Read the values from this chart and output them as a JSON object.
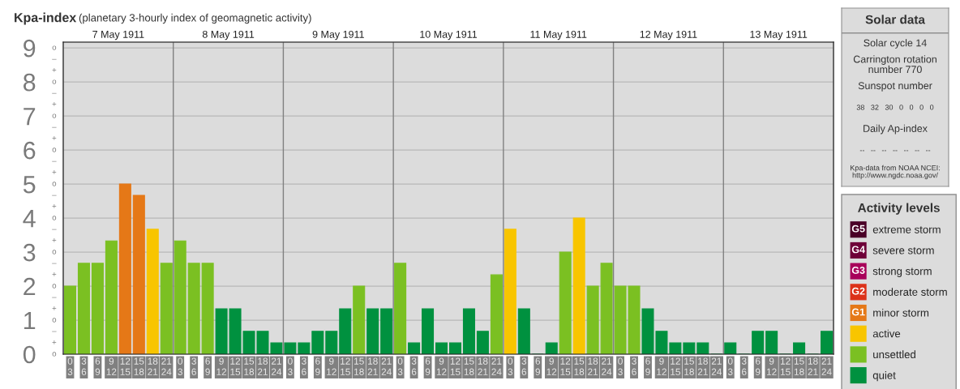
{
  "chart_data": [
    {
      "type": "bar",
      "title": "Kpa-index",
      "subtitle": "(planetary 3-hourly index of geomagnetic activity)",
      "legend_title": "Activity levels",
      "legend": "right",
      "grid": true,
      "categories": [
        "0\n3",
        "3\n6",
        "6\n9",
        "9\n12",
        "12\n15",
        "15\n18",
        "18\n21",
        "21\n24",
        "0\n3",
        "3\n6",
        "6\n9",
        "9\n12",
        "12\n15",
        "15\n18",
        "18\n21",
        "21\n24",
        "0\n3",
        "3\n6",
        "6\n9",
        "9\n12",
        "12\n15",
        "15\n18",
        "18\n21",
        "21\n24",
        "0\n3",
        "3\n6",
        "6\n9",
        "9\n12",
        "12\n15",
        "15\n18",
        "18\n21",
        "21\n24",
        "0\n3",
        "3\n6",
        "6\n9",
        "9\n12",
        "12\n15",
        "15\n18",
        "18\n21",
        "21\n24",
        "0\n3",
        "3\n6",
        "6\n9",
        "9\n12",
        "12\n15",
        "15\n18",
        "18\n21",
        "21\n24",
        "0\n3",
        "3\n6",
        "6\n9",
        "9\n12",
        "12\n15",
        "15\n18",
        "18\n21",
        "21\n24"
      ],
      "ylim": [
        0,
        9.17
      ],
      "yticks": [
        0,
        1,
        2,
        3,
        4,
        5,
        6,
        7,
        8,
        9
      ],
      "x2lim": [
        "1911-05-07",
        "1911-05-14"
      ],
      "x2ticks": [
        {
          "value": "1911-05-07T12:00",
          "label": "7 May 1911"
        },
        {
          "value": "1911-05-08",
          "label": null
        },
        {
          "value": "1911-05-08T12:00",
          "label": "8 May 1911"
        },
        {
          "value": "1911-05-09",
          "label": null
        },
        {
          "value": "1911-05-09T12:00",
          "label": "9 May 1911"
        },
        {
          "value": "1911-05-10",
          "label": null
        },
        {
          "value": "1911-05-10T12:00",
          "label": "10 May 1911"
        },
        {
          "value": "1911-05-11",
          "label": null
        },
        {
          "value": "1911-05-11T12:00",
          "label": "11 May 1911"
        },
        {
          "value": "1911-05-12",
          "label": null
        },
        {
          "value": "1911-05-12T12:00",
          "label": "12 May 1911"
        },
        {
          "value": "1911-05-13",
          "label": null
        },
        {
          "value": "1911-05-13T12:00",
          "label": "13 May 1911"
        }
      ],
      "annotations": [
        "o",
        "+",
        "–",
        "o",
        "+",
        "–",
        "o",
        "+",
        "–",
        "o",
        "+",
        "–",
        "o",
        "+",
        "–",
        "o",
        "+",
        "–",
        "o",
        "+",
        "–",
        "o",
        "+",
        "–",
        "o",
        "+",
        "–",
        "o",
        "G5",
        "G4",
        "G3",
        "G2",
        "G1"
      ],
      "series": [
        {
          "name": "extreme storm",
          "color": "#4a0027",
          "values": [
            null,
            null,
            null,
            null,
            null,
            null,
            null,
            null,
            null,
            null,
            null,
            null,
            null,
            null,
            null,
            null,
            null,
            null,
            null,
            null,
            null,
            null,
            null,
            null,
            null,
            null,
            null,
            null,
            null,
            null,
            null,
            null,
            null,
            null,
            null,
            null,
            null,
            null,
            null,
            null,
            null,
            null,
            null,
            null,
            null,
            null,
            null,
            null,
            null,
            null,
            null,
            null,
            null,
            null,
            null,
            null
          ]
        },
        {
          "name": "severe storm",
          "color": "#6e0038",
          "values": [
            null,
            null,
            null,
            null,
            null,
            null,
            null,
            null,
            null,
            null,
            null,
            null,
            null,
            null,
            null,
            null,
            null,
            null,
            null,
            null,
            null,
            null,
            null,
            null,
            null,
            null,
            null,
            null,
            null,
            null,
            null,
            null,
            null,
            null,
            null,
            null,
            null,
            null,
            null,
            null,
            null,
            null,
            null,
            null,
            null,
            null,
            null,
            null,
            null,
            null,
            null,
            null,
            null,
            null,
            null,
            null
          ]
        },
        {
          "name": "strong storm",
          "color": "#a8005a",
          "values": [
            null,
            null,
            null,
            null,
            null,
            null,
            null,
            null,
            null,
            null,
            null,
            null,
            null,
            null,
            null,
            null,
            null,
            null,
            null,
            null,
            null,
            null,
            null,
            null,
            null,
            null,
            null,
            null,
            null,
            null,
            null,
            null,
            null,
            null,
            null,
            null,
            null,
            null,
            null,
            null,
            null,
            null,
            null,
            null,
            null,
            null,
            null,
            null,
            null,
            null,
            null,
            null,
            null,
            null,
            null,
            null
          ]
        },
        {
          "name": "moderate storm",
          "color": "#dc3219",
          "values": [
            null,
            null,
            null,
            null,
            null,
            null,
            null,
            null,
            null,
            null,
            null,
            null,
            null,
            null,
            null,
            null,
            null,
            null,
            null,
            null,
            null,
            null,
            null,
            null,
            null,
            null,
            null,
            null,
            null,
            null,
            null,
            null,
            null,
            null,
            null,
            null,
            null,
            null,
            null,
            null,
            null,
            null,
            null,
            null,
            null,
            null,
            null,
            null,
            null,
            null,
            null,
            null,
            null,
            null,
            null,
            null
          ]
        },
        {
          "name": "minor storm",
          "color": "#e57817",
          "values": [
            null,
            null,
            null,
            null,
            5,
            4.67,
            null,
            null,
            null,
            null,
            null,
            null,
            null,
            null,
            null,
            null,
            null,
            null,
            null,
            null,
            null,
            null,
            null,
            null,
            null,
            null,
            null,
            null,
            null,
            null,
            null,
            null,
            null,
            null,
            null,
            null,
            null,
            null,
            null,
            null,
            null,
            null,
            null,
            null,
            null,
            null,
            null,
            null,
            null,
            null,
            null,
            null,
            null,
            null,
            null,
            null
          ]
        },
        {
          "name": "active",
          "color": "#f8c500",
          "values": [
            null,
            null,
            null,
            null,
            null,
            null,
            3.67,
            null,
            null,
            null,
            null,
            null,
            null,
            null,
            null,
            null,
            null,
            null,
            null,
            null,
            null,
            null,
            null,
            null,
            null,
            null,
            null,
            null,
            null,
            null,
            null,
            null,
            3.67,
            null,
            null,
            null,
            null,
            4,
            null,
            null,
            null,
            null,
            null,
            null,
            null,
            null,
            null,
            null,
            null,
            null,
            null,
            null,
            null,
            null,
            null,
            null
          ]
        },
        {
          "name": "unsettled",
          "color": "#7bc022",
          "values": [
            2,
            2.67,
            2.67,
            3.33,
            null,
            null,
            null,
            2.67,
            3.33,
            2.67,
            2.67,
            null,
            null,
            null,
            null,
            null,
            null,
            null,
            null,
            null,
            null,
            2,
            null,
            null,
            2.67,
            null,
            null,
            null,
            null,
            null,
            null,
            2.33,
            null,
            null,
            null,
            null,
            3,
            null,
            2,
            2.67,
            2,
            2,
            null,
            null,
            null,
            null,
            null,
            null,
            null,
            null,
            null,
            null,
            null,
            null,
            null,
            null
          ]
        },
        {
          "name": "quiet",
          "color": "#00913f",
          "values": [
            null,
            null,
            null,
            null,
            null,
            null,
            null,
            null,
            null,
            null,
            null,
            1.33,
            1.33,
            0.67,
            0.67,
            0.33,
            0.33,
            0.33,
            0.67,
            0.67,
            1.33,
            null,
            1.33,
            1.33,
            null,
            0.33,
            1.33,
            0.33,
            0.33,
            1.33,
            0.67,
            null,
            null,
            1.33,
            0,
            0.33,
            null,
            null,
            null,
            null,
            null,
            null,
            1.33,
            0.67,
            0.33,
            0.33,
            0.33,
            0,
            0.33,
            0,
            0.67,
            0.67,
            0,
            0.33,
            0,
            0.67
          ]
        }
      ]
    },
    {
      "type": "other",
      "title": "Solar data",
      "annotations": [
        "Solar cycle 14",
        "Carrington rotation\nnumber 770",
        "Sunspot number",
        "38   32   30   0   0   0   0",
        "Daily Ap-index",
        "--   --   --   --   --   --   --",
        "Kpa-data from NOAA NCEI:\nhttp://www.ngdc.noaa.gov/"
      ]
    }
  ]
}
